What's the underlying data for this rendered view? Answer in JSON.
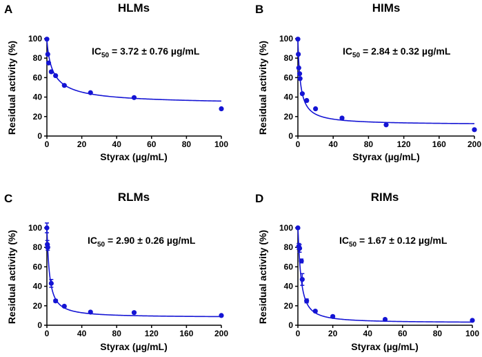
{
  "chart_data": [
    {
      "type": "scatter",
      "panel_label": "A",
      "title": "HLMs",
      "xlabel": "Styrax (µg/mL)",
      "ylabel": "Residual activity (%)",
      "xlim": [
        0,
        100
      ],
      "ylim": [
        0,
        100
      ],
      "xticks": [
        0,
        20,
        40,
        60,
        80,
        100
      ],
      "yticks": [
        0,
        20,
        40,
        60,
        80,
        100
      ],
      "annotation": {
        "prefix": "IC",
        "sub": "50",
        "suffix": " = 3.72 ± 0.76 µg/mL"
      },
      "color": "#1414d4",
      "series": [
        {
          "name": "HLMs",
          "x": [
            0,
            0.5,
            1,
            2.5,
            5,
            10,
            25,
            50,
            100
          ],
          "y": [
            99.5,
            84,
            75,
            66,
            62,
            52,
            44.5,
            39.5,
            28
          ],
          "err": [
            0,
            0,
            0,
            0,
            0,
            0,
            0,
            0,
            0
          ]
        }
      ],
      "fit": {
        "bottom": 32,
        "ic50": 3.72,
        "hill": 0.85
      }
    },
    {
      "type": "scatter",
      "panel_label": "B",
      "title": "HIMs",
      "xlabel": "Styrax (µg/mL)",
      "ylabel": "Residual activity (%)",
      "xlim": [
        0,
        200
      ],
      "ylim": [
        0,
        100
      ],
      "xticks": [
        0,
        40,
        80,
        120,
        160,
        200
      ],
      "yticks": [
        0,
        20,
        40,
        60,
        80,
        100
      ],
      "annotation": {
        "prefix": "IC",
        "sub": "50",
        "suffix": " = 2.84 ± 0.32 µg/mL"
      },
      "color": "#1414d4",
      "series": [
        {
          "name": "HIMs",
          "x": [
            0,
            0.5,
            1,
            2,
            2.5,
            5,
            10,
            20,
            50,
            100,
            200
          ],
          "y": [
            99.5,
            84,
            70,
            64,
            59,
            43.5,
            36.5,
            28,
            18.5,
            11.5,
            6.5
          ],
          "err": [
            0,
            0,
            0,
            0,
            0,
            0,
            0,
            0,
            0,
            0,
            0
          ]
        }
      ],
      "fit": {
        "bottom": 11.5,
        "ic50": 2.84,
        "hill": 1.0
      }
    },
    {
      "type": "scatter",
      "panel_label": "C",
      "title": "RLMs",
      "xlabel": "Styrax (µg/mL)",
      "ylabel": "Residual activity (%)",
      "xlim": [
        0,
        200
      ],
      "ylim": [
        0,
        100
      ],
      "xticks": [
        0,
        40,
        80,
        120,
        160,
        200
      ],
      "yticks": [
        0,
        20,
        40,
        60,
        80,
        100
      ],
      "annotation": {
        "prefix": "IC",
        "sub": "50",
        "suffix": " = 2.90 ± 0.26 µg/mL"
      },
      "color": "#1414d4",
      "series": [
        {
          "name": "RLMs",
          "x": [
            0,
            0.5,
            1,
            5,
            10,
            20,
            50,
            100,
            200
          ],
          "y": [
            100,
            83,
            80,
            43,
            25,
            19.5,
            13.5,
            13,
            10
          ],
          "err": [
            5,
            4,
            3,
            4,
            1.5,
            1,
            0.8,
            1,
            0.8
          ]
        }
      ],
      "fit": {
        "bottom": 8,
        "ic50": 2.9,
        "hill": 1.1
      }
    },
    {
      "type": "scatter",
      "panel_label": "D",
      "title": "RIMs",
      "xlabel": "Styrax (µg/mL)",
      "ylabel": "Residual activity (%)",
      "xlim": [
        0,
        100
      ],
      "ylim": [
        0,
        100
      ],
      "xticks": [
        0,
        20,
        40,
        60,
        80,
        100
      ],
      "yticks": [
        0,
        20,
        40,
        60,
        80,
        100
      ],
      "annotation": {
        "prefix": "IC",
        "sub": "50",
        "suffix": " = 1.67 ± 0.12 µg/mL"
      },
      "color": "#1414d4",
      "series": [
        {
          "name": "RIMs",
          "x": [
            0,
            0.5,
            1,
            2,
            2.5,
            5,
            10,
            20,
            50,
            100
          ],
          "y": [
            100,
            81,
            79,
            66,
            47,
            25,
            14.5,
            9,
            6,
            5
          ],
          "err": [
            1,
            3,
            4,
            2,
            6,
            2,
            1,
            1,
            0.8,
            0.8
          ]
        }
      ],
      "fit": {
        "bottom": 2.5,
        "ic50": 1.67,
        "hill": 1.2
      }
    }
  ]
}
